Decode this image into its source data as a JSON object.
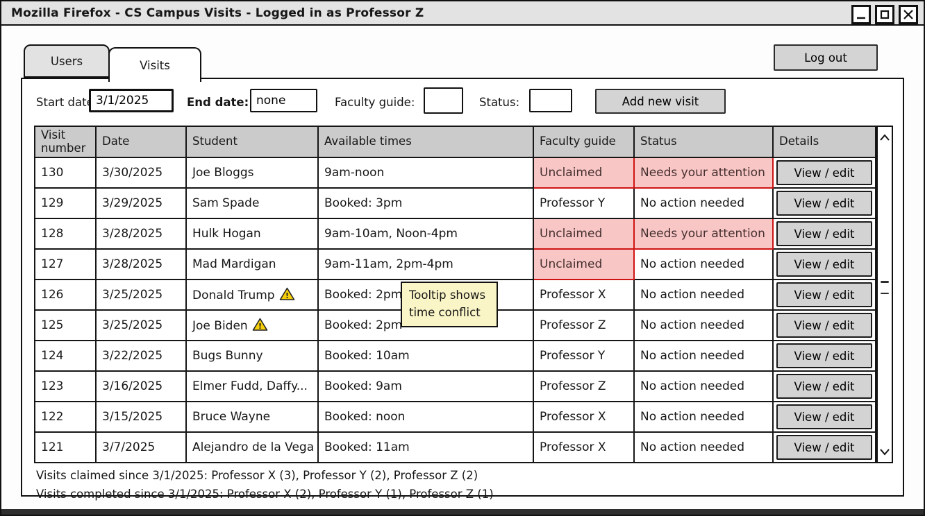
{
  "window": {
    "title": "Mozilla Firefox - CS Campus Visits - Logged in as Professor Z",
    "controls": {
      "minimize": "minimize-icon",
      "maximize": "maximize-icon",
      "close": "close-icon"
    }
  },
  "tabs": [
    {
      "label": "Users",
      "active": false
    },
    {
      "label": "Visits",
      "active": true
    }
  ],
  "logout_label": "Log out",
  "filters": {
    "start_date": {
      "label": "Start date:",
      "value": "3/1/2025"
    },
    "end_date": {
      "label": "End date:",
      "value": "none"
    },
    "faculty_guide": {
      "label": "Faculty guide:",
      "value": ""
    },
    "status": {
      "label": "Status:",
      "value": ""
    },
    "add_button_label": "Add new visit"
  },
  "table": {
    "headers": [
      "Visit number",
      "Date",
      "Student",
      "Available times",
      "Faculty guide",
      "Status",
      "Details"
    ],
    "view_edit_label": "View / edit",
    "rows": [
      {
        "visit": "130",
        "date": "3/30/2025",
        "student": "Joe Bloggs",
        "warning": false,
        "times": "9am-noon",
        "guide": "Unclaimed",
        "guide_alert": true,
        "status": "Needs your attention",
        "status_alert": true
      },
      {
        "visit": "129",
        "date": "3/29/2025",
        "student": "Sam Spade",
        "warning": false,
        "times": "Booked: 3pm",
        "guide": "Professor Y",
        "guide_alert": false,
        "status": "No action needed",
        "status_alert": false
      },
      {
        "visit": "128",
        "date": "3/28/2025",
        "student": "Hulk Hogan",
        "warning": false,
        "times": "9am-10am, Noon-4pm",
        "guide": "Unclaimed",
        "guide_alert": true,
        "status": "Needs your attention",
        "status_alert": true
      },
      {
        "visit": "127",
        "date": "3/28/2025",
        "student": "Mad Mardigan",
        "warning": false,
        "times": "9am-11am, 2pm-4pm",
        "guide": "Unclaimed",
        "guide_alert": true,
        "status": "No action needed",
        "status_alert": false
      },
      {
        "visit": "126",
        "date": "3/25/2025",
        "student": "Donald Trump",
        "warning": true,
        "times": "Booked: 2pm",
        "guide": "Professor X",
        "guide_alert": false,
        "status": "No action needed",
        "status_alert": false
      },
      {
        "visit": "125",
        "date": "3/25/2025",
        "student": "Joe Biden",
        "warning": true,
        "times": "Booked: 2pm",
        "guide": "Professor Z",
        "guide_alert": false,
        "status": "No action needed",
        "status_alert": false
      },
      {
        "visit": "124",
        "date": "3/22/2025",
        "student": "Bugs Bunny",
        "warning": false,
        "times": "Booked: 10am",
        "guide": "Professor Y",
        "guide_alert": false,
        "status": "No action needed",
        "status_alert": false
      },
      {
        "visit": "123",
        "date": "3/16/2025",
        "student": "Elmer Fudd, Daffy...",
        "warning": false,
        "times": "Booked: 9am",
        "guide": "Professor Z",
        "guide_alert": false,
        "status": "No action needed",
        "status_alert": false
      },
      {
        "visit": "122",
        "date": "3/15/2025",
        "student": "Bruce Wayne",
        "warning": false,
        "times": "Booked: noon",
        "guide": "Professor X",
        "guide_alert": false,
        "status": "No action needed",
        "status_alert": false
      },
      {
        "visit": "121",
        "date": "3/7/2025",
        "student": "Alejandro de la Vega",
        "warning": false,
        "times": "Booked: 11am",
        "guide": "Professor X",
        "guide_alert": false,
        "status": "No action needed",
        "status_alert": false
      }
    ]
  },
  "tooltip": {
    "lines": [
      "Tooltip shows",
      "time conflict"
    ]
  },
  "summary": {
    "claimed": "Visits claimed since 3/1/2025: Professor X (3), Professor Y (2), Professor Z (2)",
    "completed": "Visits completed since 3/1/2025: Professor X (2), Professor Y (1), Professor Z (1)"
  },
  "icons": {
    "warning": "warning-triangle",
    "scroll_up": "chevron-up",
    "scroll_down": "chevron-down"
  },
  "colors": {
    "alert_bg": "#f9c6c6",
    "alert_border": "#cf1414",
    "tooltip_bg": "#faf5c6",
    "warning_yellow": "#f6cf0a",
    "button_gray": "#d4d4d4",
    "header_gray": "#cbcbcb"
  }
}
